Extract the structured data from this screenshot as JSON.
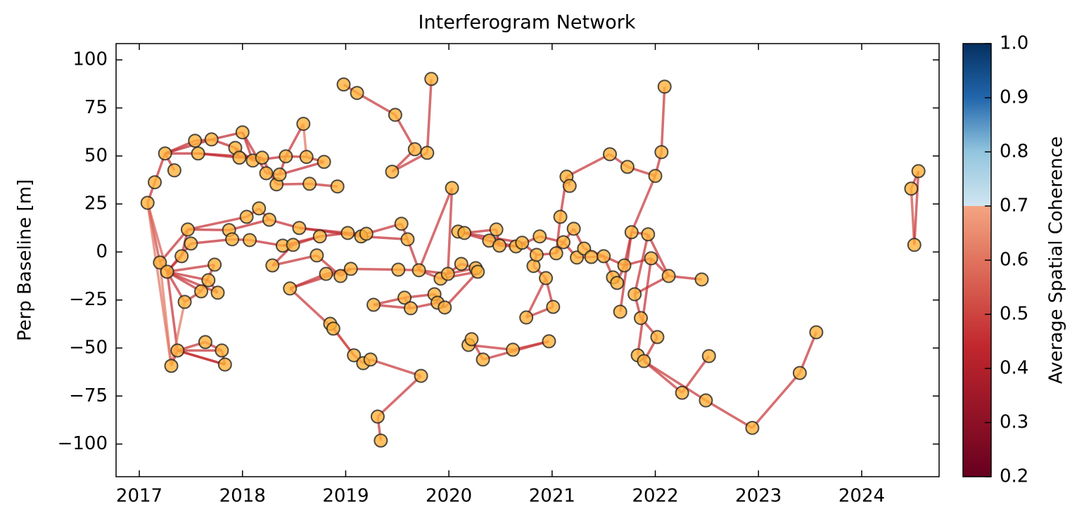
{
  "chart_data": {
    "type": "network",
    "title": "Interferogram Network",
    "ylabel": "Perp Baseline [m]",
    "colorbar_label": "Average Spatial Coherence",
    "colormap": "RdBu",
    "clim": [
      0.2,
      1.0
    ],
    "cticks": [
      0.2,
      0.3,
      0.4,
      0.5,
      0.6,
      0.7,
      0.8,
      0.9,
      1.0
    ],
    "xlim": [
      2016.775,
      2024.75
    ],
    "xticks": [
      2017,
      2018,
      2019,
      2020,
      2021,
      2022,
      2023,
      2024
    ],
    "ylim": [
      -117,
      108.5
    ],
    "yticks": [
      -100,
      -75,
      -50,
      -25,
      0,
      25,
      50,
      75,
      100
    ],
    "node_color": "#ffb13b",
    "x": [
      2017.08,
      2017.15,
      2017.25,
      2017.34,
      2017.2,
      2017.27,
      2017.31,
      2017.37,
      2017.41,
      2017.44,
      2017.47,
      2017.5,
      2017.54,
      2017.57,
      2017.6,
      2017.64,
      2017.67,
      2017.7,
      2017.73,
      2017.76,
      2017.8,
      2017.83,
      2017.87,
      2017.9,
      2017.93,
      2017.97,
      2018.0,
      2018.04,
      2018.07,
      2018.1,
      2018.16,
      2018.19,
      2018.23,
      2018.26,
      2018.29,
      2018.33,
      2018.36,
      2018.39,
      2018.42,
      2018.46,
      2018.49,
      2018.55,
      2018.59,
      2018.62,
      2018.65,
      2018.72,
      2018.75,
      2018.79,
      2018.81,
      2018.85,
      2018.88,
      2018.92,
      2018.95,
      2018.98,
      2019.02,
      2019.05,
      2019.08,
      2019.11,
      2019.15,
      2019.17,
      2019.2,
      2019.24,
      2019.27,
      2019.31,
      2019.34,
      2019.45,
      2019.48,
      2019.51,
      2019.54,
      2019.57,
      2019.6,
      2019.63,
      2019.67,
      2019.71,
      2019.73,
      2019.79,
      2019.83,
      2019.86,
      2019.89,
      2019.92,
      2019.96,
      2019.99,
      2020.03,
      2020.09,
      2020.12,
      2020.15,
      2020.19,
      2020.22,
      2020.26,
      2020.28,
      2020.33,
      2020.39,
      2020.46,
      2020.49,
      2020.62,
      2020.65,
      2020.71,
      2020.75,
      2020.82,
      2020.85,
      2020.88,
      2020.94,
      2020.97,
      2021.01,
      2021.04,
      2021.08,
      2021.11,
      2021.14,
      2021.17,
      2021.21,
      2021.24,
      2021.31,
      2021.38,
      2021.5,
      2021.56,
      2021.59,
      2021.63,
      2021.66,
      2021.7,
      2021.73,
      2021.77,
      2021.8,
      2021.83,
      2021.86,
      2021.89,
      2021.93,
      2021.96,
      2022.0,
      2022.02,
      2022.06,
      2022.09,
      2022.13,
      2022.26,
      2022.45,
      2022.49,
      2022.52,
      2022.94,
      2023.4,
      2023.56,
      2024.48,
      2024.51,
      2024.55
    ],
    "y": [
      25.6,
      36.3,
      51.3,
      42.5,
      -5.5,
      -10.3,
      -59.3,
      -51.3,
      -2.2,
      -26.0,
      11.7,
      4.4,
      57.9,
      51.3,
      -20.5,
      -46.9,
      -14.7,
      58.6,
      -6.6,
      -21.2,
      -51.3,
      -58.6,
      11.4,
      6.6,
      54.2,
      49.1,
      62.3,
      18.3,
      6.2,
      47.6,
      22.7,
      49.1,
      41.0,
      16.8,
      -7.0,
      35.2,
      40.3,
      3.3,
      49.8,
      -19.0,
      3.7,
      12.5,
      66.7,
      49.5,
      35.5,
      -1.8,
      8.1,
      46.9,
      -11.4,
      -37.4,
      -39.9,
      34.1,
      -12.5,
      87.2,
      9.9,
      -8.8,
      -53.8,
      82.8,
      8.1,
      -57.9,
      9.5,
      -56.0,
      -27.5,
      -85.7,
      -98.2,
      41.8,
      71.4,
      -9.2,
      14.7,
      -23.8,
      6.6,
      -29.3,
      53.5,
      -9.5,
      -64.5,
      51.6,
      90.1,
      -22.0,
      -26.4,
      -13.9,
      -28.9,
      -11.4,
      33.3,
      10.6,
      -6.2,
      9.9,
      -48.4,
      -45.4,
      -8.4,
      -10.3,
      -56.0,
      5.9,
      11.7,
      3.3,
      -50.9,
      2.9,
      4.8,
      -34.1,
      -7.3,
      -1.5,
      8.1,
      -13.6,
      -46.5,
      -28.6,
      -0.7,
      18.3,
      5.1,
      39.2,
      34.4,
      12.1,
      -2.9,
      1.8,
      -2.6,
      -2.2,
      50.9,
      -13.2,
      -16.1,
      -31.1,
      -7.0,
      44.3,
      10.3,
      -22.0,
      -53.8,
      -34.4,
      -56.8,
      9.2,
      -3.3,
      39.6,
      -44.3,
      52.0,
      86.1,
      -12.5,
      -73.3,
      -14.3,
      -77.3,
      -54.2,
      -91.6,
      -63.0,
      -41.8,
      33.0,
      3.7,
      42.1
    ],
    "edges": [
      [
        0,
        1,
        0.45
      ],
      [
        0,
        4,
        0.5
      ],
      [
        0,
        5,
        0.55
      ],
      [
        0,
        6,
        0.6
      ],
      [
        1,
        2,
        0.45
      ],
      [
        2,
        3,
        0.45
      ],
      [
        2,
        12,
        0.44
      ],
      [
        2,
        13,
        0.44
      ],
      [
        2,
        17,
        0.42
      ],
      [
        4,
        5,
        0.5
      ],
      [
        4,
        6,
        0.6
      ],
      [
        4,
        10,
        0.45
      ],
      [
        5,
        7,
        0.45
      ],
      [
        5,
        9,
        0.45
      ],
      [
        5,
        11,
        0.45
      ],
      [
        5,
        8,
        0.45
      ],
      [
        5,
        14,
        0.45
      ],
      [
        5,
        16,
        0.45
      ],
      [
        5,
        18,
        0.45
      ],
      [
        5,
        19,
        0.45
      ],
      [
        6,
        7,
        0.45
      ],
      [
        6,
        9,
        0.6
      ],
      [
        7,
        15,
        0.45
      ],
      [
        7,
        20,
        0.45
      ],
      [
        7,
        21,
        0.45
      ],
      [
        8,
        10,
        0.45
      ],
      [
        9,
        14,
        0.45
      ],
      [
        10,
        22,
        0.44
      ],
      [
        10,
        27,
        0.45
      ],
      [
        11,
        23,
        0.44
      ],
      [
        12,
        17,
        0.42
      ],
      [
        13,
        25,
        0.44
      ],
      [
        13,
        31,
        0.44
      ],
      [
        15,
        20,
        0.45
      ],
      [
        16,
        19,
        0.45
      ],
      [
        17,
        26,
        0.42
      ],
      [
        17,
        24,
        0.44
      ],
      [
        18,
        14,
        0.45
      ],
      [
        20,
        21,
        0.45
      ],
      [
        21,
        7,
        0.45
      ],
      [
        22,
        33,
        0.44
      ],
      [
        23,
        28,
        0.44
      ],
      [
        24,
        25,
        0.45
      ],
      [
        24,
        29,
        0.44
      ],
      [
        25,
        31,
        0.44
      ],
      [
        26,
        29,
        0.44
      ],
      [
        26,
        32,
        0.45
      ],
      [
        27,
        30,
        0.45
      ],
      [
        28,
        37,
        0.44
      ],
      [
        29,
        38,
        0.44
      ],
      [
        30,
        33,
        0.45
      ],
      [
        31,
        35,
        0.44
      ],
      [
        32,
        36,
        0.45
      ],
      [
        33,
        41,
        0.44
      ],
      [
        34,
        40,
        0.45
      ],
      [
        34,
        45,
        0.45
      ],
      [
        35,
        44,
        0.45
      ],
      [
        36,
        38,
        0.44
      ],
      [
        36,
        47,
        0.44
      ],
      [
        37,
        40,
        0.45
      ],
      [
        37,
        46,
        0.44
      ],
      [
        38,
        42,
        0.45
      ],
      [
        38,
        43,
        0.45
      ],
      [
        39,
        48,
        0.45
      ],
      [
        39,
        50,
        0.46
      ],
      [
        39,
        55,
        0.45
      ],
      [
        40,
        46,
        0.45
      ],
      [
        41,
        54,
        0.44
      ],
      [
        41,
        58,
        0.44
      ],
      [
        42,
        43,
        0.6
      ],
      [
        43,
        47,
        0.45
      ],
      [
        44,
        51,
        0.45
      ],
      [
        45,
        52,
        0.45
      ],
      [
        46,
        54,
        0.44
      ],
      [
        48,
        55,
        0.45
      ],
      [
        49,
        50,
        0.45
      ],
      [
        49,
        56,
        0.55
      ],
      [
        50,
        56,
        0.5
      ],
      [
        52,
        55,
        0.45
      ],
      [
        53,
        57,
        0.46
      ],
      [
        54,
        60,
        0.44
      ],
      [
        55,
        67,
        0.45
      ],
      [
        56,
        59,
        0.45
      ],
      [
        57,
        66,
        0.46
      ],
      [
        58,
        70,
        0.44
      ],
      [
        59,
        61,
        0.45
      ],
      [
        60,
        68,
        0.45
      ],
      [
        62,
        71,
        0.45
      ],
      [
        62,
        69,
        0.45
      ],
      [
        63,
        64,
        0.46
      ],
      [
        63,
        74,
        0.46
      ],
      [
        65,
        72,
        0.46
      ],
      [
        66,
        72,
        0.46
      ],
      [
        65,
        75,
        0.46
      ],
      [
        67,
        73,
        0.45
      ],
      [
        68,
        70,
        0.44
      ],
      [
        69,
        71,
        0.45
      ],
      [
        69,
        77,
        0.45
      ],
      [
        70,
        73,
        0.45
      ],
      [
        71,
        78,
        0.45
      ],
      [
        73,
        81,
        0.45
      ],
      [
        73,
        79,
        0.45
      ],
      [
        74,
        61,
        0.46
      ],
      [
        75,
        76,
        0.46
      ],
      [
        77,
        78,
        0.45
      ],
      [
        77,
        80,
        0.45
      ],
      [
        78,
        80,
        0.45
      ],
      [
        79,
        84,
        0.45
      ],
      [
        79,
        89,
        0.45
      ],
      [
        80,
        89,
        0.45
      ],
      [
        81,
        88,
        0.45
      ],
      [
        81,
        82,
        0.46
      ],
      [
        82,
        73,
        0.46
      ],
      [
        83,
        85,
        0.44
      ],
      [
        83,
        91,
        0.44
      ],
      [
        84,
        88,
        0.45
      ],
      [
        85,
        92,
        0.44
      ],
      [
        85,
        96,
        0.43
      ],
      [
        86,
        87,
        0.45
      ],
      [
        86,
        94,
        0.46
      ],
      [
        87,
        90,
        0.46
      ],
      [
        90,
        102,
        0.46
      ],
      [
        91,
        93,
        0.44
      ],
      [
        92,
        93,
        0.44
      ],
      [
        91,
        95,
        0.44
      ],
      [
        93,
        95,
        0.44
      ],
      [
        94,
        102,
        0.46
      ],
      [
        95,
        96,
        0.44
      ],
      [
        95,
        100,
        0.44
      ],
      [
        96,
        99,
        0.44
      ],
      [
        97,
        101,
        0.46
      ],
      [
        98,
        99,
        0.45
      ],
      [
        98,
        101,
        0.45
      ],
      [
        99,
        104,
        0.44
      ],
      [
        100,
        106,
        0.44
      ],
      [
        101,
        103,
        0.46
      ],
      [
        97,
        103,
        0.46
      ],
      [
        104,
        105,
        0.45
      ],
      [
        104,
        106,
        0.44
      ],
      [
        105,
        107,
        0.45
      ],
      [
        106,
        109,
        0.44
      ],
      [
        106,
        110,
        0.44
      ],
      [
        107,
        108,
        0.45
      ],
      [
        107,
        114,
        0.46
      ],
      [
        109,
        111,
        0.44
      ],
      [
        110,
        112,
        0.44
      ],
      [
        111,
        113,
        0.44
      ],
      [
        112,
        113,
        0.44
      ],
      [
        113,
        115,
        0.45
      ],
      [
        113,
        118,
        0.44
      ],
      [
        114,
        119,
        0.46
      ],
      [
        115,
        116,
        0.6
      ],
      [
        116,
        118,
        0.45
      ],
      [
        117,
        120,
        0.45
      ],
      [
        118,
        120,
        0.45
      ],
      [
        118,
        126,
        0.44
      ],
      [
        119,
        127,
        0.46
      ],
      [
        120,
        127,
        0.46
      ],
      [
        120,
        125,
        0.44
      ],
      [
        121,
        123,
        0.45
      ],
      [
        121,
        125,
        0.45
      ],
      [
        121,
        131,
        0.45
      ],
      [
        122,
        126,
        0.45
      ],
      [
        123,
        128,
        0.45
      ],
      [
        124,
        128,
        0.45
      ],
      [
        125,
        131,
        0.45
      ],
      [
        126,
        131,
        0.45
      ],
      [
        127,
        129,
        0.46
      ],
      [
        129,
        130,
        0.46
      ],
      [
        131,
        133,
        0.45
      ],
      [
        124,
        132,
        0.46
      ],
      [
        124,
        134,
        0.46
      ],
      [
        132,
        135,
        0.46
      ],
      [
        134,
        136,
        0.46
      ],
      [
        136,
        137,
        0.46
      ],
      [
        137,
        138,
        0.46
      ],
      [
        139,
        140,
        0.5
      ],
      [
        139,
        141,
        0.46
      ],
      [
        140,
        141,
        0.46
      ]
    ]
  }
}
